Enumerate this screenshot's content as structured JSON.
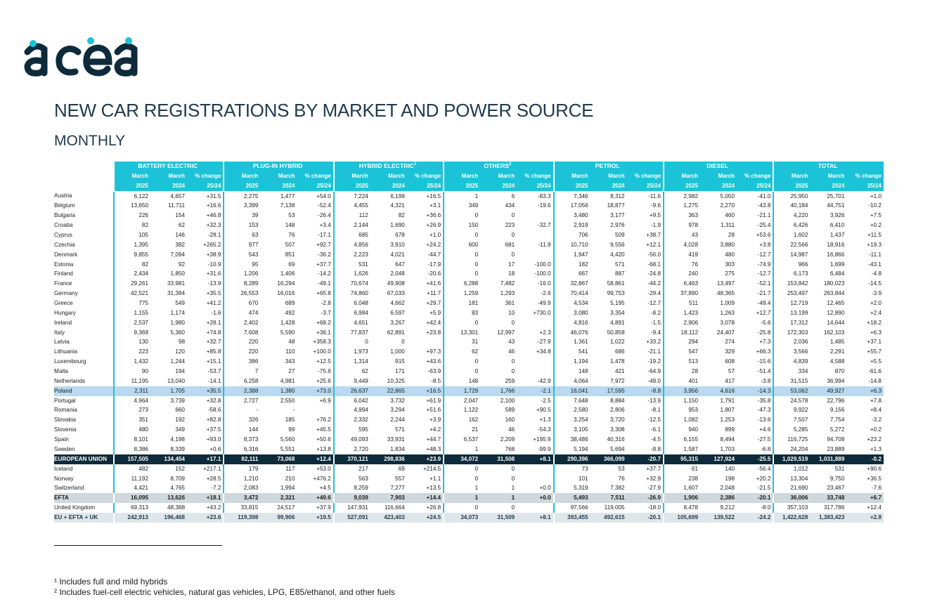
{
  "logo_text": "acea",
  "title": "NEW CAR REGISTRATIONS BY MARKET AND POWER SOURCE",
  "subtitle": "MONTHLY",
  "groups": [
    {
      "label": "BATTERY ELECTRIC",
      "sup": ""
    },
    {
      "label": "PLUG-IN HYBRID",
      "sup": ""
    },
    {
      "label": "HYBRID ELECTRIC",
      "sup": "1"
    },
    {
      "label": "OTHERS",
      "sup": "2"
    },
    {
      "label": "PETROL",
      "sup": ""
    },
    {
      "label": "DIESEL",
      "sup": ""
    },
    {
      "label": "TOTAL",
      "sup": ""
    }
  ],
  "subheader": {
    "row1": [
      "March",
      "March",
      "% change"
    ],
    "row2": [
      "2025",
      "2024",
      "25/24"
    ]
  },
  "rows": [
    {
      "country": "Austria",
      "type": "normal",
      "values": [
        "6,122",
        "4,657",
        "+31.5",
        "2,275",
        "1,477",
        "+54.0",
        "7,224",
        "6,199",
        "+16.5",
        "1",
        "6",
        "-83.3",
        "7,346",
        "8,312",
        "-11.6",
        "2,982",
        "5,050",
        "-41.0",
        "25,950",
        "25,701",
        "+1.0"
      ]
    },
    {
      "country": "Belgium",
      "type": "normal",
      "values": [
        "13,650",
        "11,711",
        "+16.6",
        "3,399",
        "7,138",
        "-52.4",
        "4,455",
        "4,321",
        "+3.1",
        "349",
        "434",
        "-19.6",
        "17,056",
        "18,877",
        "-9.6",
        "1,275",
        "2,270",
        "-43.8",
        "40,184",
        "44,751",
        "-10.2"
      ]
    },
    {
      "country": "Bulgaria",
      "type": "normal",
      "values": [
        "226",
        "154",
        "+46.8",
        "39",
        "53",
        "-26.4",
        "112",
        "82",
        "+36.6",
        "0",
        "0",
        "",
        "3,480",
        "3,177",
        "+9.5",
        "363",
        "460",
        "-21.1",
        "4,220",
        "3,926",
        "+7.5"
      ]
    },
    {
      "country": "Croatia",
      "type": "normal",
      "values": [
        "82",
        "62",
        "+32.3",
        "153",
        "148",
        "+3.4",
        "2,144",
        "1,690",
        "+26.9",
        "150",
        "223",
        "-32.7",
        "2,919",
        "2,976",
        "-1.9",
        "978",
        "1,311",
        "-25.4",
        "6,426",
        "6,410",
        "+0.2"
      ]
    },
    {
      "country": "Cyprus",
      "type": "normal",
      "values": [
        "105",
        "146",
        "-28.1",
        "63",
        "76",
        "-17.1",
        "685",
        "678",
        "+1.0",
        "0",
        "0",
        "",
        "706",
        "509",
        "+38.7",
        "43",
        "28",
        "+53.6",
        "1,602",
        "1,437",
        "+11.5"
      ]
    },
    {
      "country": "Czechia",
      "type": "normal",
      "values": [
        "1,395",
        "382",
        "+265.2",
        "977",
        "507",
        "+92.7",
        "4,856",
        "3,910",
        "+24.2",
        "600",
        "681",
        "-11.9",
        "10,710",
        "9,556",
        "+12.1",
        "4,028",
        "3,880",
        "+3.8",
        "22,566",
        "18,916",
        "+19.3"
      ]
    },
    {
      "country": "Denmark",
      "type": "normal",
      "values": [
        "9,855",
        "7,094",
        "+38.9",
        "543",
        "851",
        "-36.2",
        "2,223",
        "4,021",
        "-44.7",
        "0",
        "0",
        "",
        "1,947",
        "4,420",
        "-56.0",
        "419",
        "480",
        "-12.7",
        "14,987",
        "16,866",
        "-11.1"
      ]
    },
    {
      "country": "Estonia",
      "type": "normal",
      "values": [
        "82",
        "92",
        "-10.9",
        "95",
        "69",
        "+37.7",
        "531",
        "647",
        "-17.9",
        "0",
        "17",
        "-100.0",
        "182",
        "571",
        "-68.1",
        "76",
        "303",
        "-74.9",
        "966",
        "1,699",
        "-43.1"
      ]
    },
    {
      "country": "Finland",
      "type": "normal",
      "values": [
        "2,434",
        "1,850",
        "+31.6",
        "1,206",
        "1,406",
        "-14.2",
        "1,626",
        "2,048",
        "-20.6",
        "0",
        "18",
        "-100.0",
        "667",
        "887",
        "-24.8",
        "240",
        "275",
        "-12.7",
        "6,173",
        "6,484",
        "-4.8"
      ]
    },
    {
      "country": "France",
      "type": "normal",
      "values": [
        "29,261",
        "33,981",
        "-13.9",
        "8,289",
        "16,294",
        "-49.1",
        "70,674",
        "49,908",
        "+41.6",
        "6,288",
        "7,482",
        "-16.0",
        "32,867",
        "58,861",
        "-44.2",
        "6,463",
        "13,497",
        "-52.1",
        "153,842",
        "180,023",
        "-14.5"
      ]
    },
    {
      "country": "Germany",
      "type": "normal",
      "values": [
        "42,521",
        "31,384",
        "+35.5",
        "26,553",
        "16,016",
        "+65.8",
        "74,860",
        "67,033",
        "+11.7",
        "1,259",
        "1,293",
        "-2.6",
        "70,414",
        "99,753",
        "-29.4",
        "37,890",
        "48,365",
        "-21.7",
        "253,497",
        "263,844",
        "-3.9"
      ]
    },
    {
      "country": "Greece",
      "type": "normal",
      "values": [
        "775",
        "549",
        "+41.2",
        "670",
        "689",
        "-2.8",
        "6,048",
        "4,662",
        "+29.7",
        "181",
        "361",
        "-49.9",
        "4,534",
        "5,195",
        "-12.7",
        "511",
        "1,009",
        "-49.4",
        "12,719",
        "12,465",
        "+2.0"
      ]
    },
    {
      "country": "Hungary",
      "type": "normal",
      "values": [
        "1,155",
        "1,174",
        "-1.6",
        "474",
        "492",
        "-3.7",
        "6,984",
        "6,597",
        "+5.9",
        "83",
        "10",
        "+730.0",
        "3,080",
        "3,354",
        "-8.2",
        "1,423",
        "1,263",
        "+12.7",
        "13,199",
        "12,890",
        "+2.4"
      ]
    },
    {
      "country": "Ireland",
      "type": "normal",
      "values": [
        "2,537",
        "1,980",
        "+28.1",
        "2,402",
        "1,428",
        "+68.2",
        "4,651",
        "3,267",
        "+42.4",
        "0",
        "0",
        "",
        "4,816",
        "4,891",
        "-1.5",
        "2,906",
        "3,078",
        "-5.6",
        "17,312",
        "14,644",
        "+18.2"
      ]
    },
    {
      "country": "Italy",
      "type": "normal",
      "values": [
        "9,369",
        "5,360",
        "+74.8",
        "7,608",
        "5,590",
        "+36.1",
        "77,837",
        "62,891",
        "+23.8",
        "13,301",
        "12,997",
        "+2.3",
        "46,076",
        "50,858",
        "-9.4",
        "18,112",
        "24,407",
        "-25.8",
        "172,303",
        "162,103",
        "+6.3"
      ]
    },
    {
      "country": "Latvia",
      "type": "normal",
      "values": [
        "130",
        "98",
        "+32.7",
        "220",
        "48",
        "+358.3",
        "0",
        "0",
        "",
        "31",
        "43",
        "-27.9",
        "1,361",
        "1,022",
        "+33.2",
        "294",
        "274",
        "+7.3",
        "2,036",
        "1,485",
        "+37.1"
      ]
    },
    {
      "country": "Lithuania",
      "type": "normal",
      "values": [
        "223",
        "120",
        "+85.8",
        "220",
        "110",
        "+100.0",
        "1,973",
        "1,000",
        "+97.3",
        "62",
        "46",
        "+34.8",
        "541",
        "686",
        "-21.1",
        "547",
        "329",
        "+66.3",
        "3,566",
        "2,291",
        "+55.7"
      ]
    },
    {
      "country": "Luxembourg",
      "type": "normal",
      "values": [
        "1,432",
        "1,244",
        "+15.1",
        "386",
        "343",
        "+12.5",
        "1,314",
        "915",
        "+43.6",
        "0",
        "0",
        "",
        "1,194",
        "1,478",
        "-19.2",
        "513",
        "608",
        "-15.6",
        "4,839",
        "4,588",
        "+5.5"
      ]
    },
    {
      "country": "Malta",
      "type": "normal",
      "values": [
        "90",
        "194",
        "-53.7",
        "7",
        "27",
        "-75.6",
        "62",
        "171",
        "-63.9",
        "0",
        "0",
        "",
        "148",
        "421",
        "-64.9",
        "28",
        "57",
        "-51.4",
        "334",
        "870",
        "-61.6"
      ]
    },
    {
      "country": "Netherlands",
      "type": "normal",
      "values": [
        "11,195",
        "13,040",
        "-14.1",
        "6,258",
        "4,981",
        "+25.6",
        "9,449",
        "10,325",
        "-8.5",
        "148",
        "259",
        "-42.9",
        "4,064",
        "7,972",
        "-49.0",
        "401",
        "417",
        "-3.8",
        "31,515",
        "36,994",
        "-14.8"
      ]
    },
    {
      "country": "Poland",
      "type": "selected",
      "values": [
        "2,311",
        "1,705",
        "+35.5",
        "2,388",
        "1,380",
        "+73.0",
        "26,637",
        "22,865",
        "+16.5",
        "1,729",
        "1,766",
        "-2.1",
        "16,041",
        "17,595",
        "-8.8",
        "3,956",
        "4,616",
        "-14.3",
        "53,062",
        "49,927",
        "+6.3"
      ]
    },
    {
      "country": "Portugal",
      "type": "normal",
      "values": [
        "4,964",
        "3,739",
        "+32.8",
        "2,727",
        "2,550",
        "+6.9",
        "6,042",
        "3,732",
        "+61.9",
        "2,047",
        "2,100",
        "-2.5",
        "7,648",
        "8,884",
        "-13.9",
        "1,150",
        "1,791",
        "-35.8",
        "24,578",
        "22,796",
        "+7.8"
      ]
    },
    {
      "country": "Romania",
      "type": "normal",
      "values": [
        "273",
        "660",
        "-58.6",
        "-",
        "-",
        "",
        "4,994",
        "3,294",
        "+51.6",
        "1,122",
        "589",
        "+90.5",
        "2,580",
        "2,806",
        "-8.1",
        "953",
        "1,807",
        "-47.3",
        "9,922",
        "9,156",
        "+8.4"
      ]
    },
    {
      "country": "Slovakia",
      "type": "normal",
      "values": [
        "351",
        "192",
        "+82.8",
        "326",
        "185",
        "+76.2",
        "2,332",
        "2,244",
        "+3.9",
        "162",
        "160",
        "+1.3",
        "3,254",
        "3,720",
        "-12.5",
        "1,082",
        "1,253",
        "-13.6",
        "7,507",
        "7,754",
        "-3.2"
      ]
    },
    {
      "country": "Slovenia",
      "type": "normal",
      "values": [
        "480",
        "349",
        "+37.5",
        "144",
        "99",
        "+45.5",
        "595",
        "571",
        "+4.2",
        "21",
        "46",
        "-54.3",
        "3,105",
        "3,308",
        "-6.1",
        "940",
        "899",
        "+4.6",
        "5,285",
        "5,272",
        "+0.2"
      ]
    },
    {
      "country": "Spain",
      "type": "normal",
      "values": [
        "8,101",
        "4,198",
        "+93.0",
        "8,373",
        "5,560",
        "+50.6",
        "49,093",
        "33,931",
        "+44.7",
        "6,537",
        "2,209",
        "+195.9",
        "38,486",
        "40,316",
        "-4.5",
        "6,155",
        "8,494",
        "-27.5",
        "116,725",
        "94,708",
        "+23.2"
      ]
    },
    {
      "country": "Sweden",
      "type": "normal",
      "values": [
        "8,386",
        "8,339",
        "+0.6",
        "6,316",
        "5,551",
        "+13.8",
        "2,720",
        "1,834",
        "+48.3",
        "1",
        "768",
        "-99.9",
        "5,194",
        "5,694",
        "-8.8",
        "1,587",
        "1,703",
        "-6.8",
        "24,204",
        "23,889",
        "+1.3"
      ]
    },
    {
      "country": "EUROPEAN UNION",
      "type": "eu",
      "values": [
        "157,505",
        "134,454",
        "+17.1",
        "82,111",
        "73,068",
        "+12.4",
        "370,121",
        "298,836",
        "+23.9",
        "34,072",
        "31,508",
        "+8.1",
        "290,396",
        "366,099",
        "-20.7",
        "95,315",
        "127,924",
        "-25.5",
        "1,029,519",
        "1,031,889",
        "-0.2"
      ]
    },
    {
      "country": "Iceland",
      "type": "normal",
      "values": [
        "482",
        "152",
        "+217.1",
        "179",
        "117",
        "+53.0",
        "217",
        "69",
        "+214.5",
        "0",
        "0",
        "",
        "73",
        "53",
        "+37.7",
        "61",
        "140",
        "-56.4",
        "1,012",
        "531",
        "+90.6"
      ]
    },
    {
      "country": "Norway",
      "type": "normal",
      "values": [
        "11,192",
        "8,709",
        "+28.5",
        "1,210",
        "210",
        "+476.2",
        "563",
        "557",
        "+1.1",
        "0",
        "0",
        "",
        "101",
        "76",
        "+32.9",
        "238",
        "198",
        "+20.2",
        "13,304",
        "9,750",
        "+36.5"
      ]
    },
    {
      "country": "Switzerland",
      "type": "normal",
      "values": [
        "4,421",
        "4,765",
        "-7.2",
        "2,083",
        "1,994",
        "+4.5",
        "8,259",
        "7,277",
        "+13.5",
        "1",
        "1",
        "+0.0",
        "5,319",
        "7,382",
        "-27.9",
        "1,607",
        "2,048",
        "-21.5",
        "21,690",
        "23,467",
        "-7.6"
      ]
    },
    {
      "country": "EFTA",
      "type": "efta",
      "values": [
        "16,095",
        "13,626",
        "+18.1",
        "3,472",
        "2,321",
        "+49.6",
        "9,039",
        "7,903",
        "+14.4",
        "1",
        "1",
        "+0.0",
        "5,493",
        "7,511",
        "-26.9",
        "1,906",
        "2,386",
        "-20.1",
        "36,006",
        "33,748",
        "+6.7"
      ]
    },
    {
      "country": "United Kingdom",
      "type": "normal",
      "values": [
        "69,313",
        "48,388",
        "+43.2",
        "33,815",
        "24,517",
        "+37.9",
        "147,931",
        "116,664",
        "+26.8",
        "0",
        "0",
        "",
        "97,566",
        "119,005",
        "-18.0",
        "8,478",
        "9,212",
        "-8.0",
        "357,103",
        "317,786",
        "+12.4"
      ]
    },
    {
      "country": "EU + EFTA + UK",
      "type": "total",
      "values": [
        "242,913",
        "196,468",
        "+23.6",
        "119,398",
        "99,906",
        "+19.5",
        "527,091",
        "423,403",
        "+24.5",
        "34,073",
        "31,509",
        "+8.1",
        "393,455",
        "492,615",
        "-20.1",
        "105,699",
        "139,522",
        "-24.2",
        "1,422,628",
        "1,383,423",
        "+2.8"
      ]
    }
  ],
  "footnotes": [
    "¹ Includes full and mild hybrids",
    "² Includes fuel-cell electric vehicles, natural gas vehicles, LPG, E85/ethanol, and other fuels"
  ],
  "colors": {
    "accent": "#1cc2d8",
    "dark": "#0d2b3a",
    "efta": "#cfd8dc",
    "total": "#dfe6ea",
    "selected": "#b8d9f1"
  }
}
